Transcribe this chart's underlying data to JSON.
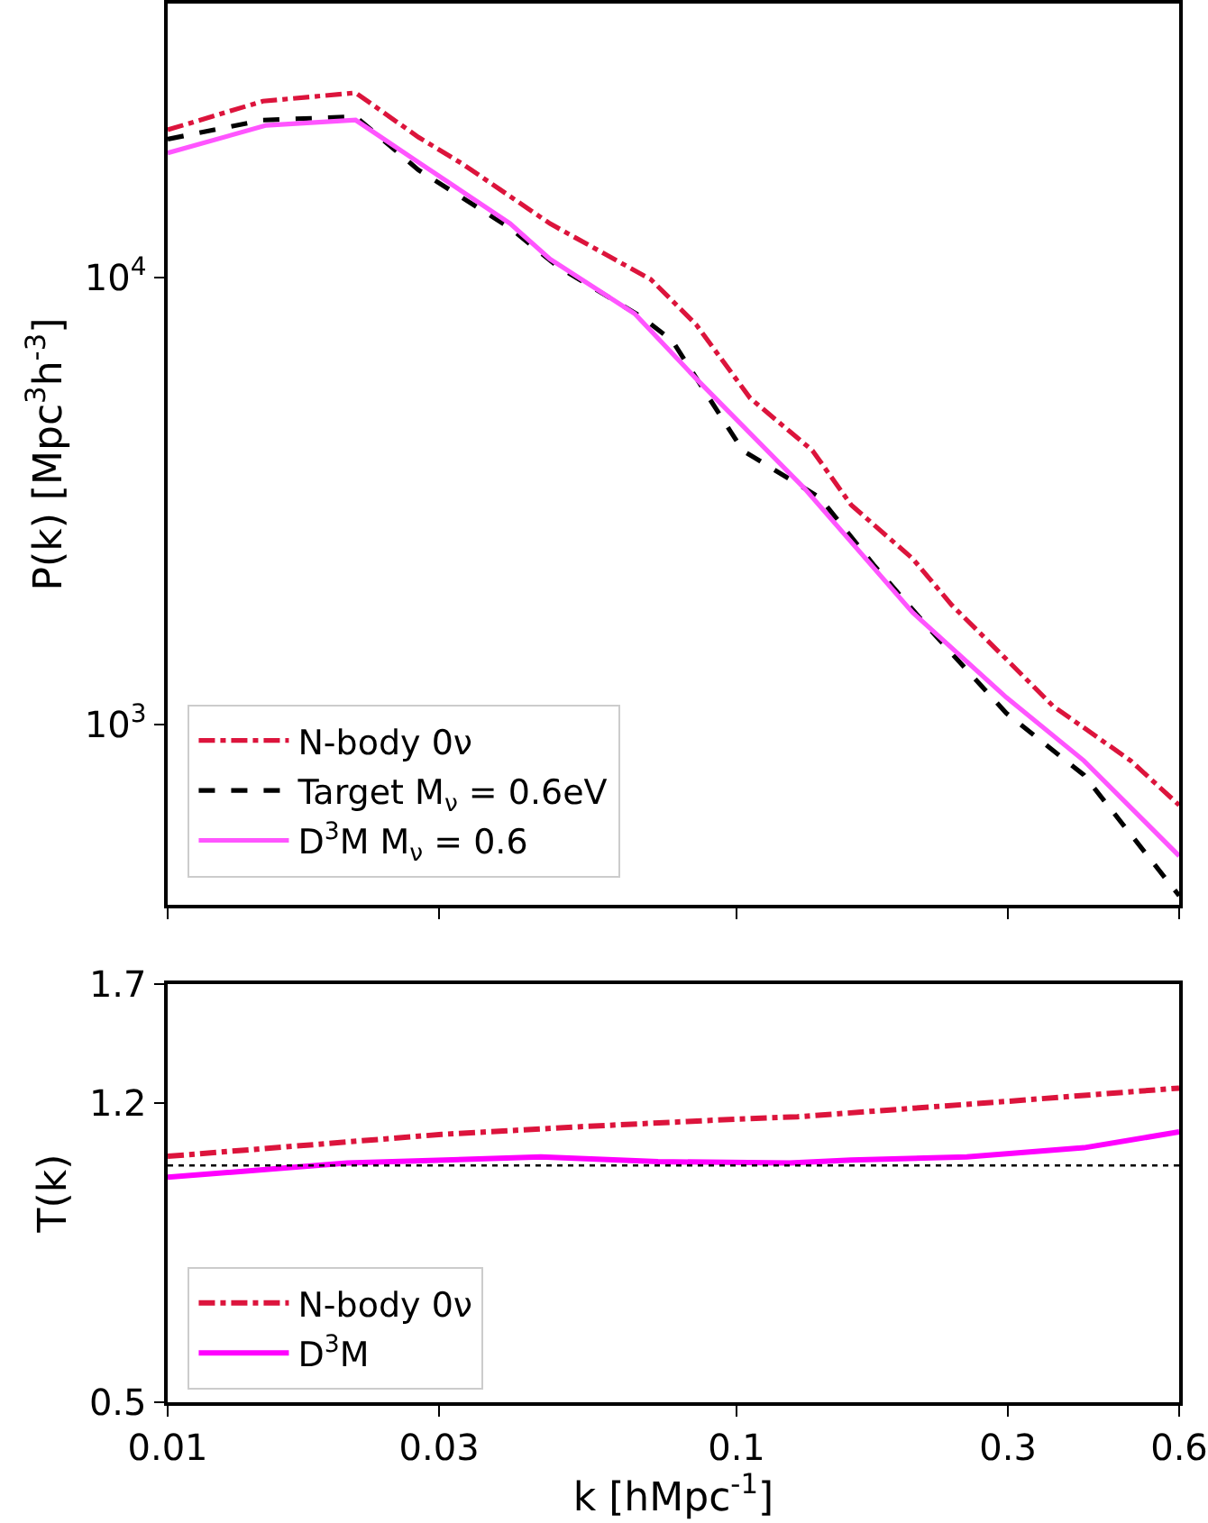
{
  "chart_data": [
    {
      "type": "line",
      "ylabel": "P(k) [Mpc$^{3}$h$^{-3}$]",
      "log": "xy",
      "xlim": [
        0.01,
        0.6
      ],
      "ylim": [
        395,
        41000
      ],
      "yticks": [
        {
          "value": 1000,
          "label": "10$^{3}$"
        },
        {
          "value": 10000,
          "label": "10$^{4}$"
        }
      ],
      "xticks": [
        0.01,
        0.03,
        0.1,
        0.3,
        0.6
      ],
      "tick_labels": "y",
      "grid": false,
      "legend": "bottom left",
      "marker": "none",
      "series": [
        {
          "name": "N-body 0ν",
          "color": "#dc143c",
          "line_style": "dashdot",
          "x": [
            0.01,
            0.0147,
            0.0214,
            0.0276,
            0.0331,
            0.047,
            0.0707,
            0.0849,
            0.1057,
            0.136,
            0.159,
            0.204,
            0.239,
            0.298,
            0.36,
            0.493,
            0.6
          ],
          "values": [
            21400,
            24800,
            25900,
            20600,
            17900,
            13200,
            9900,
            7850,
            5370,
            4100,
            3100,
            2350,
            1850,
            1400,
            1100,
            830,
            660
          ]
        },
        {
          "name": "Target M$_{ν}$ = 0.6eV",
          "color": "#000000",
          "line_style": "dashed",
          "x": [
            0.01,
            0.0147,
            0.0214,
            0.0276,
            0.04,
            0.0484,
            0.0682,
            0.0771,
            0.1026,
            0.14,
            0.175,
            0.218,
            0.298,
            0.408,
            0.6
          ],
          "values": [
            20400,
            22500,
            22900,
            17400,
            12900,
            10600,
            8150,
            7220,
            4100,
            3220,
            2260,
            1640,
            1060,
            771,
            414
          ]
        },
        {
          "name": "D$^{3}$M M$_{ν}$ = 0.6",
          "color": "#ff55ff",
          "line_style": "solid",
          "x": [
            0.01,
            0.0149,
            0.0214,
            0.0276,
            0.04,
            0.047,
            0.0662,
            0.0849,
            0.1315,
            0.204,
            0.298,
            0.408,
            0.6
          ],
          "values": [
            19000,
            21900,
            22500,
            18100,
            13200,
            11000,
            8300,
            5940,
            3380,
            1780,
            1150,
            830,
            508
          ]
        }
      ]
    },
    {
      "type": "line",
      "xlabel": "k [hMpc$^{-1}$]",
      "ylabel": "T(k)",
      "log": "xy",
      "xlim": [
        0.01,
        0.6
      ],
      "ylim": [
        0.5,
        1.7
      ],
      "xticks": [
        0.01,
        0.03,
        0.1,
        0.3,
        0.6
      ],
      "yticks": [
        0.5,
        1.2,
        1.7
      ],
      "grid": false,
      "legend": "bottom left",
      "marker": "none",
      "ref_lines": [
        {
          "axis": "y",
          "value": 1,
          "color": "#000000",
          "line_style": "dotted"
        }
      ],
      "series": [
        {
          "name": "N-body 0ν",
          "color": "#dc143c",
          "line_style": "dashdot",
          "x": [
            0.01,
            0.0303,
            0.0532,
            0.0996,
            0.128,
            0.298,
            0.6
          ],
          "values": [
            1.027,
            1.095,
            1.12,
            1.145,
            1.153,
            1.206,
            1.254
          ]
        },
        {
          "name": "D$^{3}$M",
          "color": "#ff00ff",
          "line_style": "solid",
          "x": [
            0.01,
            0.0207,
            0.0453,
            0.0728,
            0.124,
            0.159,
            0.254,
            0.408,
            0.6
          ],
          "values": [
            0.966,
            1.007,
            1.025,
            1.011,
            1.007,
            1.016,
            1.025,
            1.053,
            1.103
          ]
        }
      ]
    }
  ]
}
